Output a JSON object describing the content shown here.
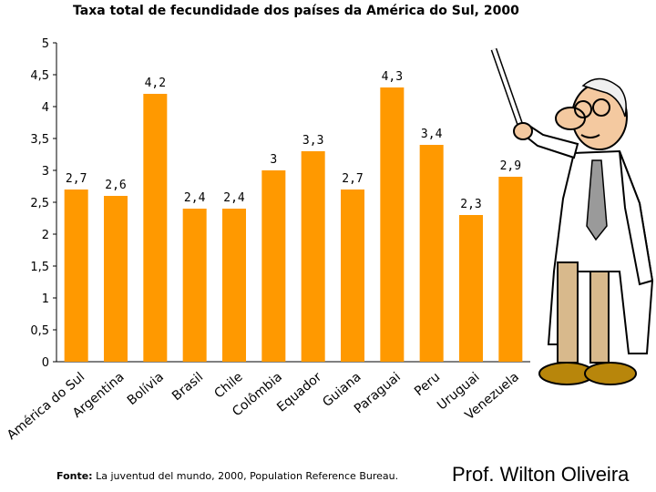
{
  "chart_data": {
    "type": "bar",
    "title": "Taxa total de fecundidade dos países da América do Sul, 2000",
    "categories": [
      "América do Sul",
      "Argentina",
      "Bolívia",
      "Brasil",
      "Chile",
      "Colômbia",
      "Equador",
      "Guiana",
      "Paraguai",
      "Peru",
      "Uruguai",
      "Venezuela"
    ],
    "values": [
      2.7,
      2.6,
      4.2,
      2.4,
      2.4,
      3.0,
      3.3,
      2.7,
      4.3,
      3.4,
      2.3,
      2.9
    ],
    "value_labels": [
      "2,7",
      "2,6",
      "4,2",
      "2,4",
      "2,4",
      "3",
      "3,3",
      "2,7",
      "4,3",
      "3,4",
      "2,3",
      "2,9"
    ],
    "y_ticks": [
      0,
      0.5,
      1,
      1.5,
      2,
      2.5,
      3,
      3.5,
      4,
      4.5,
      5
    ],
    "y_tick_labels": [
      "0",
      "0,5",
      "1",
      "1,5",
      "2",
      "2,5",
      "3",
      "3,5",
      "4",
      "4,5",
      "5"
    ],
    "ylim": [
      0,
      5
    ],
    "grid": false,
    "legend": "none",
    "bar_color": "#ff9900",
    "xlabel": "",
    "ylabel": ""
  },
  "source": {
    "label": "Fonte:",
    "text": " La juventud del mundo, 2000, Population Reference Bureau."
  },
  "author": "Prof. Wilton Oliveira",
  "illustration": {
    "name": "professor-with-pointer-icon"
  }
}
